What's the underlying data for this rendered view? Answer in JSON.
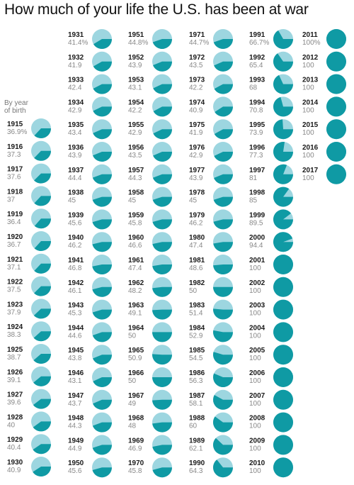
{
  "title": "How much of your life the U.S. has been at war",
  "note_line1": "By year",
  "note_line2": "of birth",
  "colors": {
    "war": "#0f9aa4",
    "peace": "#9dd6e0"
  },
  "chart_data": {
    "type": "pie",
    "title": "How much of your life the U.S. has been at war",
    "series": [
      {
        "name": "column-1",
        "items": [
          {
            "year": "1915",
            "label": "36.9%",
            "value": 36.9
          },
          {
            "year": "1916",
            "label": "37.3",
            "value": 37.3
          },
          {
            "year": "1917",
            "label": "37.6",
            "value": 37.6
          },
          {
            "year": "1918",
            "label": "37",
            "value": 37
          },
          {
            "year": "1919",
            "label": "36.4",
            "value": 36.4
          },
          {
            "year": "1920",
            "label": "36.7",
            "value": 36.7
          },
          {
            "year": "1921",
            "label": "37.1",
            "value": 37.1
          },
          {
            "year": "1922",
            "label": "37.5",
            "value": 37.5
          },
          {
            "year": "1923",
            "label": "37.9",
            "value": 37.9
          },
          {
            "year": "1924",
            "label": "38.3",
            "value": 38.3
          },
          {
            "year": "1925",
            "label": "38.7",
            "value": 38.7
          },
          {
            "year": "1926",
            "label": "39.1",
            "value": 39.1
          },
          {
            "year": "1927",
            "label": "39.6",
            "value": 39.6
          },
          {
            "year": "1928",
            "label": "40",
            "value": 40
          },
          {
            "year": "1929",
            "label": "40.4",
            "value": 40.4
          },
          {
            "year": "1930",
            "label": "40.9",
            "value": 40.9
          }
        ]
      },
      {
        "name": "column-2",
        "items": [
          {
            "year": "1931",
            "label": "41.4%",
            "value": 41.4
          },
          {
            "year": "1932",
            "label": "41.9",
            "value": 41.9
          },
          {
            "year": "1933",
            "label": "42.4",
            "value": 42.4
          },
          {
            "year": "1934",
            "label": "42.9",
            "value": 42.9
          },
          {
            "year": "1935",
            "label": "43.4",
            "value": 43.4
          },
          {
            "year": "1936",
            "label": "43.9",
            "value": 43.9
          },
          {
            "year": "1937",
            "label": "44.4",
            "value": 44.4
          },
          {
            "year": "1938",
            "label": "45",
            "value": 45
          },
          {
            "year": "1939",
            "label": "45.6",
            "value": 45.6
          },
          {
            "year": "1940",
            "label": "46.2",
            "value": 46.2
          },
          {
            "year": "1941",
            "label": "46.8",
            "value": 46.8
          },
          {
            "year": "1942",
            "label": "46.1",
            "value": 46.1
          },
          {
            "year": "1943",
            "label": "45.3",
            "value": 45.3
          },
          {
            "year": "1944",
            "label": "44.6",
            "value": 44.6
          },
          {
            "year": "1945",
            "label": "43.8",
            "value": 43.8
          },
          {
            "year": "1946",
            "label": "43.1",
            "value": 43.1
          },
          {
            "year": "1947",
            "label": "43.7",
            "value": 43.7
          },
          {
            "year": "1948",
            "label": "44.3",
            "value": 44.3
          },
          {
            "year": "1949",
            "label": "44.9",
            "value": 44.9
          },
          {
            "year": "1950",
            "label": "45.6",
            "value": 45.6
          }
        ]
      },
      {
        "name": "column-3",
        "items": [
          {
            "year": "1951",
            "label": "44.8%",
            "value": 44.8
          },
          {
            "year": "1952",
            "label": "43.9",
            "value": 43.9
          },
          {
            "year": "1953",
            "label": "43.1",
            "value": 43.1
          },
          {
            "year": "1954",
            "label": "42.2",
            "value": 42.2
          },
          {
            "year": "1955",
            "label": "42.9",
            "value": 42.9
          },
          {
            "year": "1956",
            "label": "43.5",
            "value": 43.5
          },
          {
            "year": "1957",
            "label": "44.3",
            "value": 44.3
          },
          {
            "year": "1958",
            "label": "45",
            "value": 45
          },
          {
            "year": "1959",
            "label": "45.8",
            "value": 45.8
          },
          {
            "year": "1960",
            "label": "46.6",
            "value": 46.6
          },
          {
            "year": "1961",
            "label": "47.4",
            "value": 47.4
          },
          {
            "year": "1962",
            "label": "48.2",
            "value": 48.2
          },
          {
            "year": "1963",
            "label": "49.1",
            "value": 49.1
          },
          {
            "year": "1964",
            "label": "50",
            "value": 50
          },
          {
            "year": "1965",
            "label": "50.9",
            "value": 50.9
          },
          {
            "year": "1966",
            "label": "50",
            "value": 50
          },
          {
            "year": "1967",
            "label": "49",
            "value": 49
          },
          {
            "year": "1968",
            "label": "48",
            "value": 48
          },
          {
            "year": "1969",
            "label": "46.9",
            "value": 46.9
          },
          {
            "year": "1970",
            "label": "45.8",
            "value": 45.8
          }
        ]
      },
      {
        "name": "column-4",
        "items": [
          {
            "year": "1971",
            "label": "44.7%",
            "value": 44.7
          },
          {
            "year": "1972",
            "label": "43.5",
            "value": 43.5
          },
          {
            "year": "1973",
            "label": "42.2",
            "value": 42.2
          },
          {
            "year": "1974",
            "label": "40.9",
            "value": 40.9
          },
          {
            "year": "1975",
            "label": "41.9",
            "value": 41.9
          },
          {
            "year": "1976",
            "label": "42.9",
            "value": 42.9
          },
          {
            "year": "1977",
            "label": "43.9",
            "value": 43.9
          },
          {
            "year": "1978",
            "label": "45",
            "value": 45
          },
          {
            "year": "1979",
            "label": "46.2",
            "value": 46.2
          },
          {
            "year": "1980",
            "label": "47.4",
            "value": 47.4
          },
          {
            "year": "1981",
            "label": "48.6",
            "value": 48.6
          },
          {
            "year": "1982",
            "label": "50",
            "value": 50
          },
          {
            "year": "1983",
            "label": "51.4",
            "value": 51.4
          },
          {
            "year": "1984",
            "label": "52.9",
            "value": 52.9
          },
          {
            "year": "1985",
            "label": "54.5",
            "value": 54.5
          },
          {
            "year": "1986",
            "label": "56.3",
            "value": 56.3
          },
          {
            "year": "1987",
            "label": "58.1",
            "value": 58.1
          },
          {
            "year": "1988",
            "label": "60",
            "value": 60
          },
          {
            "year": "1989",
            "label": "62.1",
            "value": 62.1
          },
          {
            "year": "1990",
            "label": "64.3",
            "value": 64.3
          }
        ]
      },
      {
        "name": "column-5",
        "items": [
          {
            "year": "1991",
            "label": "66.7%",
            "value": 66.7
          },
          {
            "year": "1992",
            "label": "65.4",
            "value": 65.4
          },
          {
            "year": "1993",
            "label": "68",
            "value": 68
          },
          {
            "year": "1994",
            "label": "70.8",
            "value": 70.8
          },
          {
            "year": "1995",
            "label": "73.9",
            "value": 73.9
          },
          {
            "year": "1996",
            "label": "77.3",
            "value": 77.3
          },
          {
            "year": "1997",
            "label": "81",
            "value": 81
          },
          {
            "year": "1998",
            "label": "85",
            "value": 85
          },
          {
            "year": "1999",
            "label": "89.5",
            "value": 89.5
          },
          {
            "year": "2000",
            "label": "94.4",
            "value": 94.4
          },
          {
            "year": "2001",
            "label": "100",
            "value": 100
          },
          {
            "year": "2002",
            "label": "100",
            "value": 100
          },
          {
            "year": "2003",
            "label": "100",
            "value": 100
          },
          {
            "year": "2004",
            "label": "100",
            "value": 100
          },
          {
            "year": "2005",
            "label": "100",
            "value": 100
          },
          {
            "year": "2006",
            "label": "100",
            "value": 100
          },
          {
            "year": "2007",
            "label": "100",
            "value": 100
          },
          {
            "year": "2008",
            "label": "100",
            "value": 100
          },
          {
            "year": "2009",
            "label": "100",
            "value": 100
          },
          {
            "year": "2010",
            "label": "100",
            "value": 100
          }
        ]
      },
      {
        "name": "column-6",
        "items": [
          {
            "year": "2011",
            "label": "100%",
            "value": 100
          },
          {
            "year": "2012",
            "label": "100",
            "value": 100
          },
          {
            "year": "2013",
            "label": "100",
            "value": 100
          },
          {
            "year": "2014",
            "label": "100",
            "value": 100
          },
          {
            "year": "2015",
            "label": "100",
            "value": 100
          },
          {
            "year": "2016",
            "label": "100",
            "value": 100
          },
          {
            "year": "2017",
            "label": "100",
            "value": 100
          }
        ]
      }
    ]
  }
}
